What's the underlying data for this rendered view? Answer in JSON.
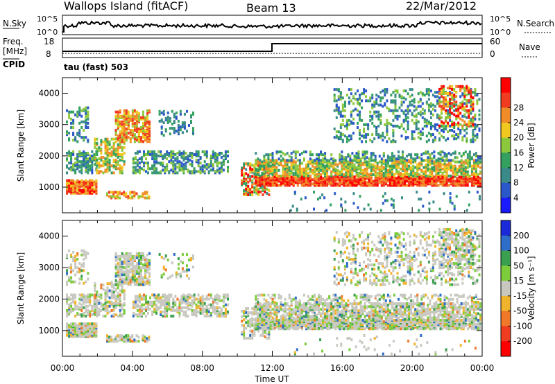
{
  "header": {
    "station": "Wallops Island (fitACF)",
    "beam": "Beam 13",
    "date": "22/Mar/2012"
  },
  "summary": {
    "nsky_label": "N.Sky",
    "nsky_top": "10^5",
    "nsky_bottom": "10^0",
    "nsearch_label": "N.Search",
    "nsearch_top": "10^5",
    "nsearch_bottom": "10^0",
    "freq_label": "Freq.",
    "freq_unit": "[MHz]",
    "freq_top": "18",
    "freq_bottom": "8",
    "nave_label": "Nave",
    "nave_top": "60",
    "nave_bottom": "0",
    "cpid_label": "CPID",
    "cpid_value": "tau (fast) 503"
  },
  "chart_data": [
    {
      "type": "heatmap",
      "name": "power",
      "ylabel": "Slant Range [km]",
      "xlabel": "Time UT",
      "x_ticks": [
        "00:00",
        "04:00",
        "08:00",
        "12:00",
        "16:00",
        "20:00",
        "00:00"
      ],
      "y_ticks": [
        1000,
        2000,
        3000,
        4000
      ],
      "ylim": [
        180,
        4500
      ],
      "xlim_hours": [
        0,
        24
      ],
      "colorbar": {
        "label": "Power [dB]",
        "ticks": [
          "4",
          "8",
          "12",
          "16",
          "20",
          "24",
          "28"
        ],
        "colors": [
          "#1a1aff",
          "#2b58c8",
          "#3a8a8a",
          "#33a060",
          "#8cc83c",
          "#f0c820",
          "#f08c28",
          "#f03c20",
          "#ff0000"
        ]
      }
    },
    {
      "type": "heatmap",
      "name": "velocity",
      "ylabel": "Slant Range [km]",
      "xlabel": "Time UT",
      "x_ticks": [
        "00:00",
        "04:00",
        "08:00",
        "12:00",
        "16:00",
        "20:00",
        "00:00"
      ],
      "y_ticks": [
        1000,
        2000,
        3000,
        4000
      ],
      "ylim": [
        180,
        4500
      ],
      "xlim_hours": [
        0,
        24
      ],
      "colorbar": {
        "label": "Velocity [m s⁻¹]",
        "ticks": [
          "200",
          "100",
          "50",
          "15",
          "-15",
          "-50",
          "-100",
          "-200"
        ],
        "colors": [
          "#1a2ad8",
          "#2e6ec8",
          "#3aa050",
          "#7ccc3c",
          "#c8c8c0",
          "#f0b42c",
          "#f07828",
          "#f03c20",
          "#ff0000"
        ]
      }
    }
  ]
}
